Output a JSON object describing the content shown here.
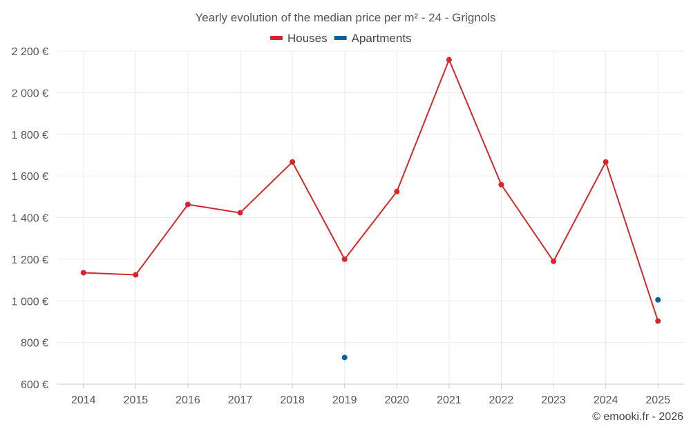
{
  "chart_data": {
    "type": "line",
    "title": "Yearly evolution of the median price per m² - 24 - Grignols",
    "xlabel": "",
    "ylabel": "",
    "categories": [
      "2014",
      "2015",
      "2016",
      "2017",
      "2018",
      "2019",
      "2020",
      "2021",
      "2022",
      "2023",
      "2024",
      "2025"
    ],
    "ylim": [
      600,
      2200
    ],
    "yticks": [
      600,
      800,
      1000,
      1200,
      1400,
      1600,
      1800,
      2000,
      2200
    ],
    "ytick_labels": [
      "600 €",
      "800 €",
      "1 000 €",
      "1 200 €",
      "1 400 €",
      "1 600 €",
      "1 800 €",
      "2 000 €",
      "2 200 €"
    ],
    "grid": true,
    "legend_position": "top-center",
    "series": [
      {
        "name": "Houses",
        "color": "#d62728",
        "values": [
          1135,
          1125,
          1463,
          1423,
          1667,
          1200,
          1525,
          2158,
          1558,
          1190,
          1667,
          903
        ]
      },
      {
        "name": "Apartments",
        "color": "#08629c",
        "values": [
          null,
          null,
          null,
          null,
          null,
          728,
          null,
          null,
          null,
          null,
          null,
          1005
        ]
      }
    ]
  },
  "credit": "© emooki.fr - 2026"
}
